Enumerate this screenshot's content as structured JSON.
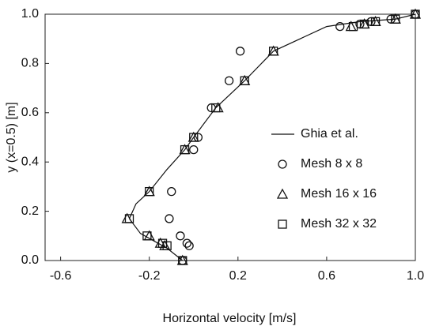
{
  "chart_data": {
    "type": "scatter",
    "xlabel": "Horizontal velocity [m/s]",
    "ylabel": "y (x=0.5) [m]",
    "xlim": [
      -0.67,
      1.0
    ],
    "xticks": [
      -0.6,
      -0.2,
      0.2,
      0.6,
      {
        "value": 1.0,
        "label": "1.0"
      }
    ],
    "ylim": [
      0,
      1
    ],
    "yticks": [
      {
        "value": 0,
        "label": "0.0"
      },
      0.2,
      0.4,
      0.6,
      0.8,
      {
        "value": 1.0,
        "label": "1.0"
      }
    ],
    "grid": false,
    "legend": "right",
    "series": [
      {
        "name": "Ghia et al.",
        "color": "#111111",
        "marker": "none",
        "x": [
          -0.05,
          -0.12,
          -0.18,
          -0.24,
          -0.29,
          -0.26,
          -0.2,
          -0.12,
          -0.04,
          0.0,
          0.1,
          0.23,
          0.36,
          0.6,
          0.75,
          0.91,
          1.0
        ],
        "values": [
          0.0,
          0.05,
          0.08,
          0.11,
          0.17,
          0.23,
          0.28,
          0.37,
          0.45,
          0.5,
          0.62,
          0.73,
          0.85,
          0.95,
          0.97,
          0.98,
          1.0
        ]
      },
      {
        "name": "Mesh 8 x 8",
        "color": "#111111",
        "marker": "circle",
        "x": [
          -0.05,
          -0.02,
          -0.03,
          -0.06,
          -0.11,
          -0.1,
          0.0,
          0.02,
          0.08,
          0.16,
          0.21,
          0.66,
          0.75,
          0.8,
          0.89,
          1.0
        ],
        "values": [
          0.0,
          0.06,
          0.07,
          0.1,
          0.17,
          0.28,
          0.45,
          0.5,
          0.62,
          0.73,
          0.85,
          0.95,
          0.96,
          0.97,
          0.98,
          1.0
        ]
      },
      {
        "name": "Mesh 16 x 16",
        "color": "#111111",
        "marker": "triangle",
        "x": [
          -0.05,
          -0.13,
          -0.15,
          -0.2,
          -0.3,
          -0.2,
          -0.04,
          0.0,
          0.11,
          0.23,
          0.36,
          0.71,
          0.77,
          0.82,
          0.91,
          1.0
        ],
        "values": [
          0.0,
          0.06,
          0.07,
          0.1,
          0.17,
          0.28,
          0.45,
          0.5,
          0.62,
          0.73,
          0.85,
          0.95,
          0.96,
          0.97,
          0.98,
          1.0
        ]
      },
      {
        "name": "Mesh 32 x 32",
        "color": "#111111",
        "marker": "square",
        "x": [
          -0.05,
          -0.12,
          -0.14,
          -0.21,
          -0.29,
          -0.2,
          -0.04,
          0.0,
          0.1,
          0.23,
          0.36,
          0.72,
          0.77,
          0.82,
          0.91,
          1.0
        ],
        "values": [
          0.0,
          0.06,
          0.07,
          0.1,
          0.17,
          0.28,
          0.45,
          0.5,
          0.62,
          0.73,
          0.85,
          0.95,
          0.96,
          0.97,
          0.98,
          1.0
        ]
      }
    ]
  }
}
